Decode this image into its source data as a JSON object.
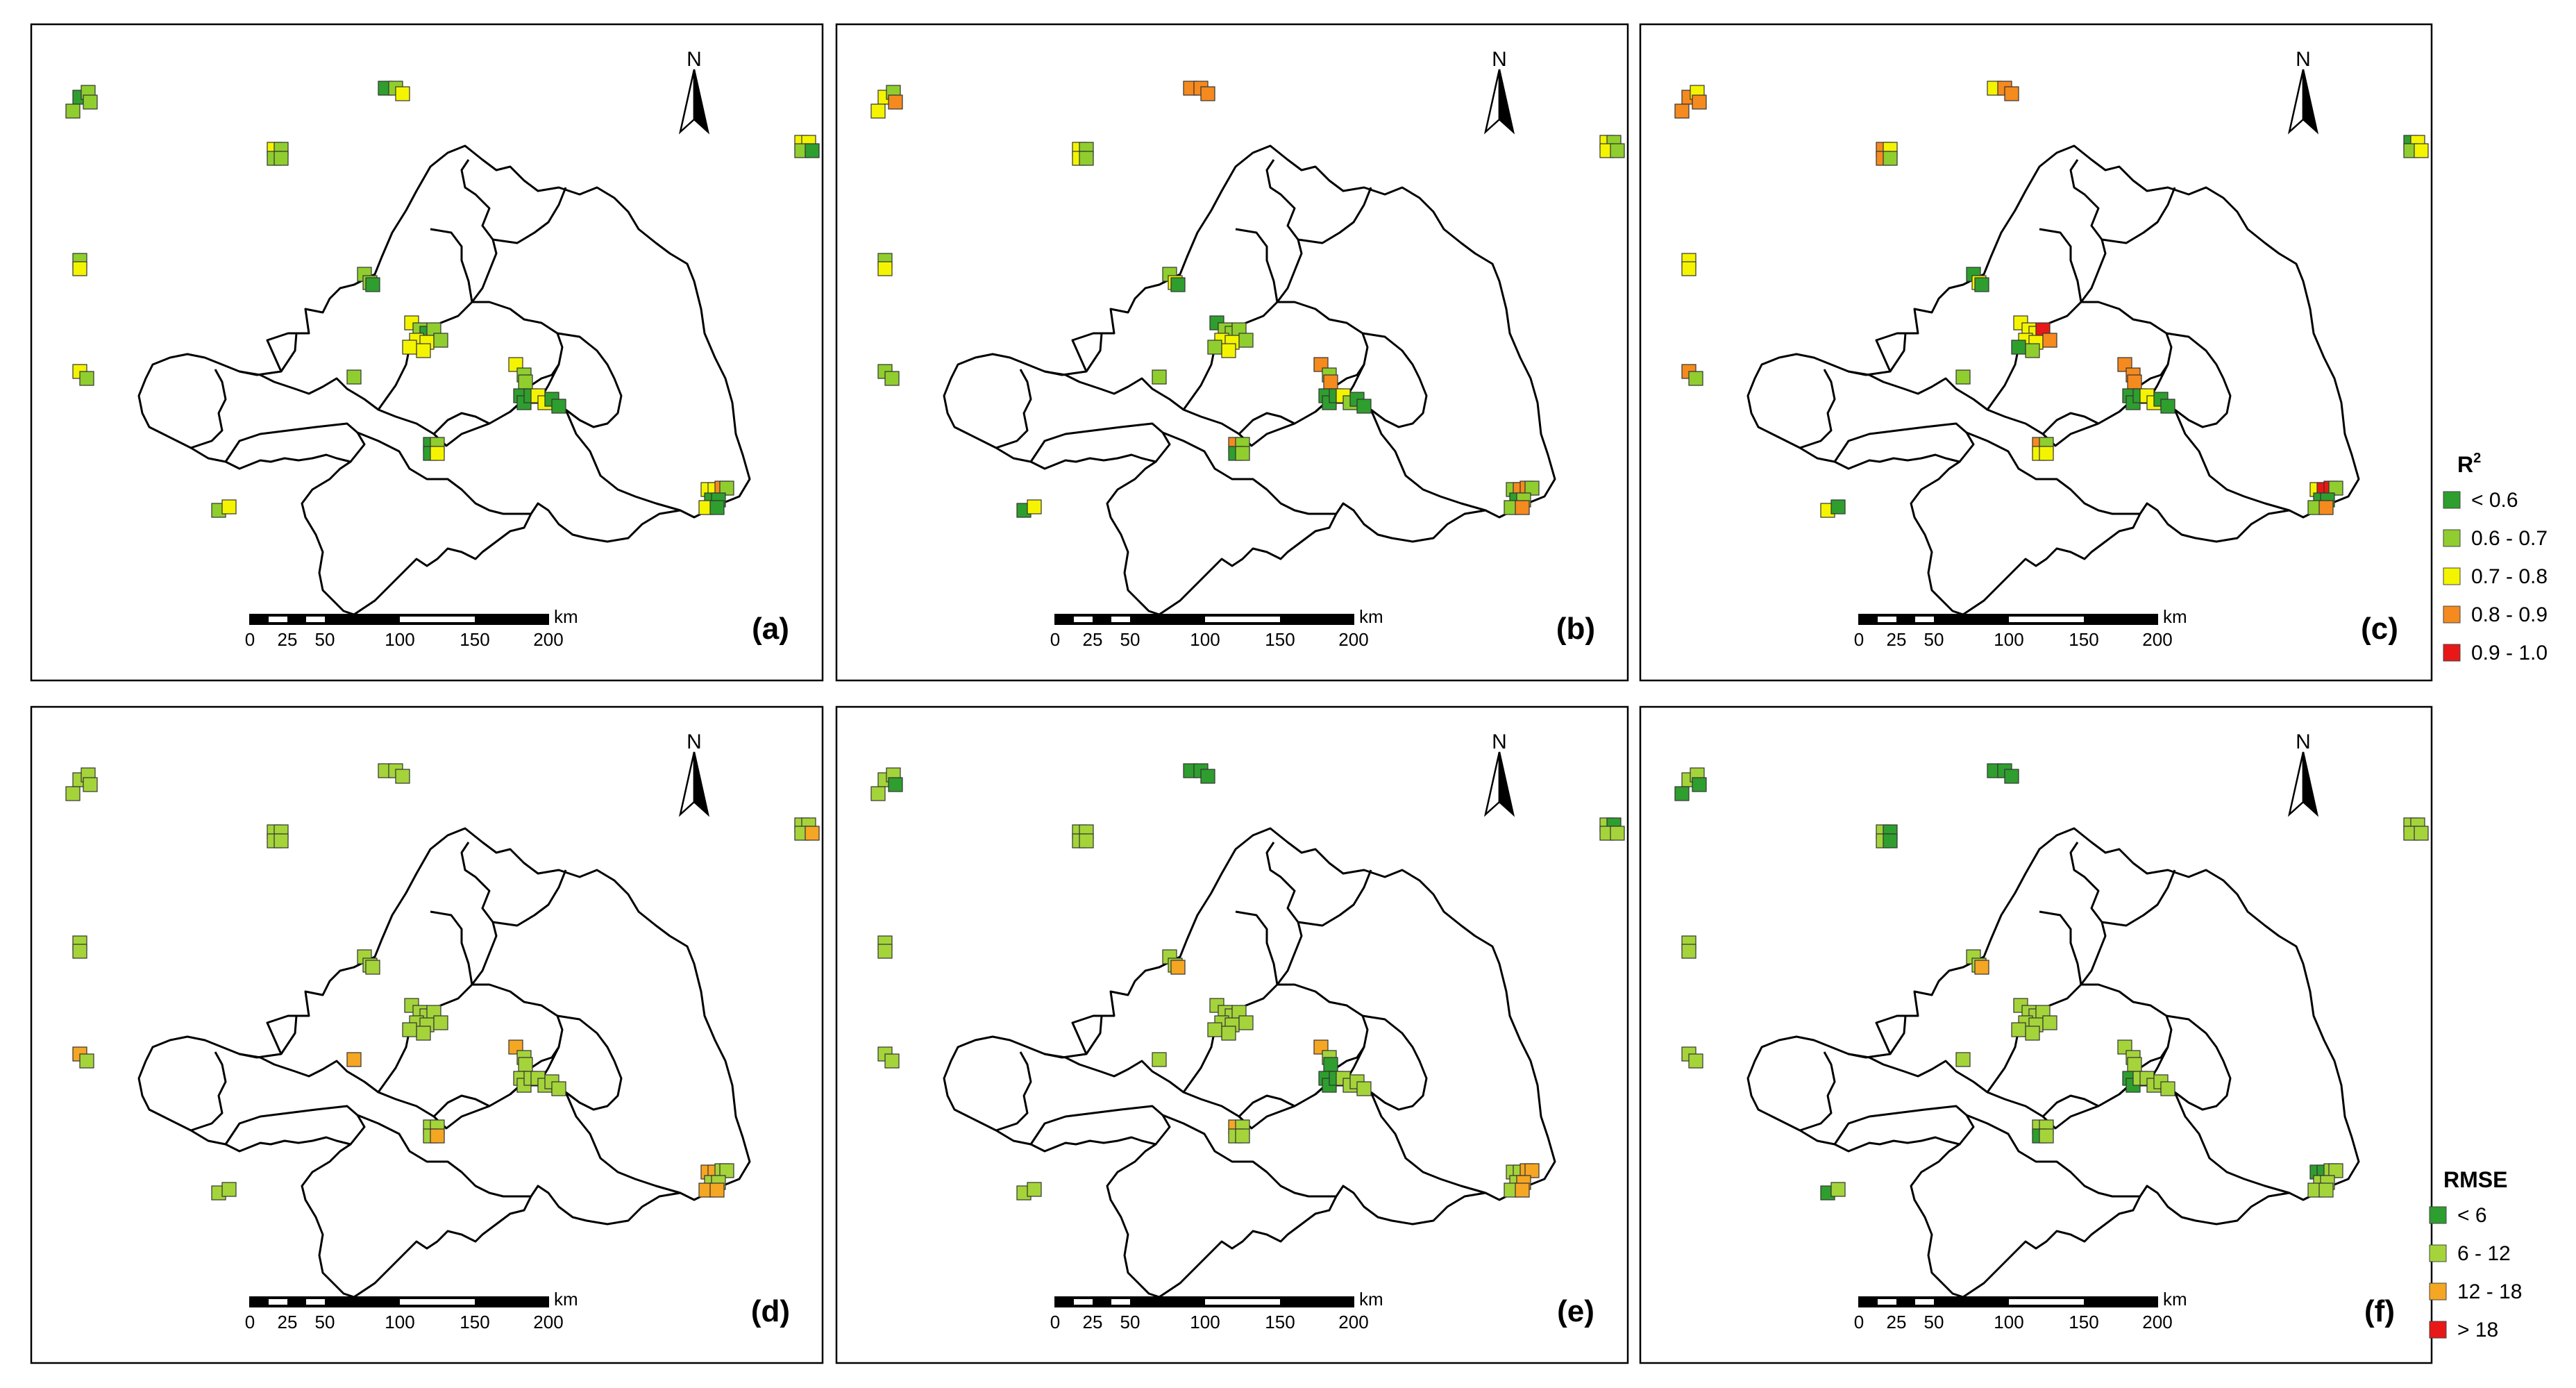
{
  "panels": [
    {
      "label": "(a)",
      "metric": "r2",
      "sites": [
        "G",
        "L",
        "L",
        "L",
        "G",
        "L",
        "Y",
        "Y",
        "L",
        "L",
        "L",
        "Y",
        "Y",
        "L",
        "G",
        "L",
        "Y",
        "Y",
        "L",
        "L",
        "L",
        "G",
        "L",
        "Y",
        "L",
        "G",
        "L",
        "Y",
        "Y",
        "L",
        "Y",
        "Y",
        "Y",
        "L",
        "L",
        "G",
        "G",
        "G",
        "Y",
        "Y",
        "G",
        "G",
        "Y",
        "Y",
        "O",
        "L",
        "G",
        "G",
        "Y",
        "G",
        "G",
        "L",
        "G",
        "Y",
        "L",
        "Y"
      ]
    },
    {
      "label": "(b)",
      "metric": "r2",
      "sites": [
        "Y",
        "L",
        "Y",
        "O",
        "O",
        "O",
        "O",
        "Y",
        "L",
        "Y",
        "L",
        "Y",
        "L",
        "Y",
        "L",
        "L",
        "Y",
        "L",
        "L",
        "L",
        "Y",
        "G",
        "L",
        "G",
        "L",
        "L",
        "L",
        "Y",
        "Y",
        "L",
        "Y",
        "L",
        "O",
        "L",
        "O",
        "G",
        "G",
        "G",
        "Y",
        "L",
        "G",
        "G",
        "L",
        "O",
        "O",
        "L",
        "G",
        "L",
        "L",
        "O",
        "O",
        "L",
        "G",
        "L",
        "G",
        "Y"
      ]
    },
    {
      "label": "(c)",
      "metric": "r2",
      "sites": [
        "O",
        "Y",
        "O",
        "O",
        "Y",
        "O",
        "O",
        "O",
        "Y",
        "O",
        "L",
        "G",
        "Y",
        "L",
        "Y",
        "Y",
        "Y",
        "O",
        "L",
        "G",
        "Y",
        "G",
        "L",
        "Y",
        "Y",
        "Y",
        "R",
        "Y",
        "Y",
        "O",
        "L",
        "G",
        "O",
        "O",
        "O",
        "G",
        "G",
        "G",
        "Y",
        "Y",
        "G",
        "G",
        "Y",
        "R",
        "R",
        "L",
        "G",
        "G",
        "L",
        "O",
        "O",
        "L",
        "Y",
        "Y",
        "Y",
        "G"
      ]
    },
    {
      "label": "(d)",
      "metric": "rmse",
      "sites": [
        "L",
        "L",
        "L",
        "L",
        "L",
        "L",
        "L",
        "L",
        "L",
        "L",
        "L",
        "L",
        "L",
        "L",
        "O",
        "L",
        "L",
        "O",
        "L",
        "L",
        "L",
        "L",
        "O",
        "L",
        "L",
        "L",
        "L",
        "L",
        "L",
        "L",
        "L",
        "L",
        "O",
        "L",
        "L",
        "L",
        "L",
        "L",
        "L",
        "L",
        "L",
        "L",
        "O",
        "O",
        "L",
        "L",
        "L",
        "L",
        "O",
        "O",
        "L",
        "L",
        "L",
        "O",
        "L",
        "L"
      ]
    },
    {
      "label": "(e)",
      "metric": "rmse",
      "sites": [
        "L",
        "L",
        "L",
        "G",
        "G",
        "G",
        "G",
        "L",
        "L",
        "L",
        "L",
        "L",
        "G",
        "L",
        "L",
        "L",
        "L",
        "L",
        "L",
        "L",
        "L",
        "O",
        "L",
        "L",
        "L",
        "L",
        "L",
        "L",
        "L",
        "L",
        "L",
        "L",
        "O",
        "L",
        "G",
        "G",
        "G",
        "G",
        "L",
        "L",
        "L",
        "L",
        "L",
        "L",
        "O",
        "O",
        "L",
        "O",
        "L",
        "O",
        "O",
        "L",
        "L",
        "L",
        "L",
        "L"
      ]
    },
    {
      "label": "(f)",
      "metric": "rmse",
      "sites": [
        "L",
        "L",
        "G",
        "G",
        "G",
        "G",
        "G",
        "L",
        "G",
        "L",
        "G",
        "L",
        "L",
        "L",
        "L",
        "L",
        "L",
        "L",
        "L",
        "L",
        "L",
        "O",
        "L",
        "L",
        "L",
        "L",
        "L",
        "L",
        "L",
        "L",
        "L",
        "L",
        "L",
        "L",
        "L",
        "G",
        "G",
        "L",
        "L",
        "L",
        "L",
        "L",
        "G",
        "G",
        "L",
        "L",
        "L",
        "L",
        "L",
        "L",
        "L",
        "L",
        "G",
        "L",
        "G",
        "L"
      ]
    }
  ],
  "north_label": "N",
  "scale_bar": {
    "ticks": [
      "0",
      "25",
      "50",
      "100",
      "150",
      "200"
    ],
    "unit": "km"
  },
  "legend_r2": {
    "title": "R",
    "title_sup": "2",
    "items": [
      {
        "label": "< 0.6",
        "color": "#2e9e2e"
      },
      {
        "label": "0.6 - 0.7",
        "color": "#8fce2e"
      },
      {
        "label": "0.7 - 0.8",
        "color": "#f4f400"
      },
      {
        "label": "0.8 - 0.9",
        "color": "#f58a1f"
      },
      {
        "label": "0.9 - 1.0",
        "color": "#e81818"
      }
    ]
  },
  "legend_rmse": {
    "title": "RMSE",
    "items": [
      {
        "label": "< 6",
        "color": "#2e9e2e"
      },
      {
        "label": "6 - 12",
        "color": "#a4d43a"
      },
      {
        "label": "12 - 18",
        "color": "#f5a623"
      },
      {
        "label": "> 18",
        "color": "#e81818"
      }
    ]
  },
  "colors": {
    "r2": {
      "G": "#2e9e2e",
      "L": "#8fce2e",
      "Y": "#f4f400",
      "O": "#f58a1f",
      "R": "#e81818"
    },
    "rmse": {
      "G": "#2e9e2e",
      "L": "#a4d43a",
      "O": "#f5a623",
      "R": "#e81818"
    }
  }
}
